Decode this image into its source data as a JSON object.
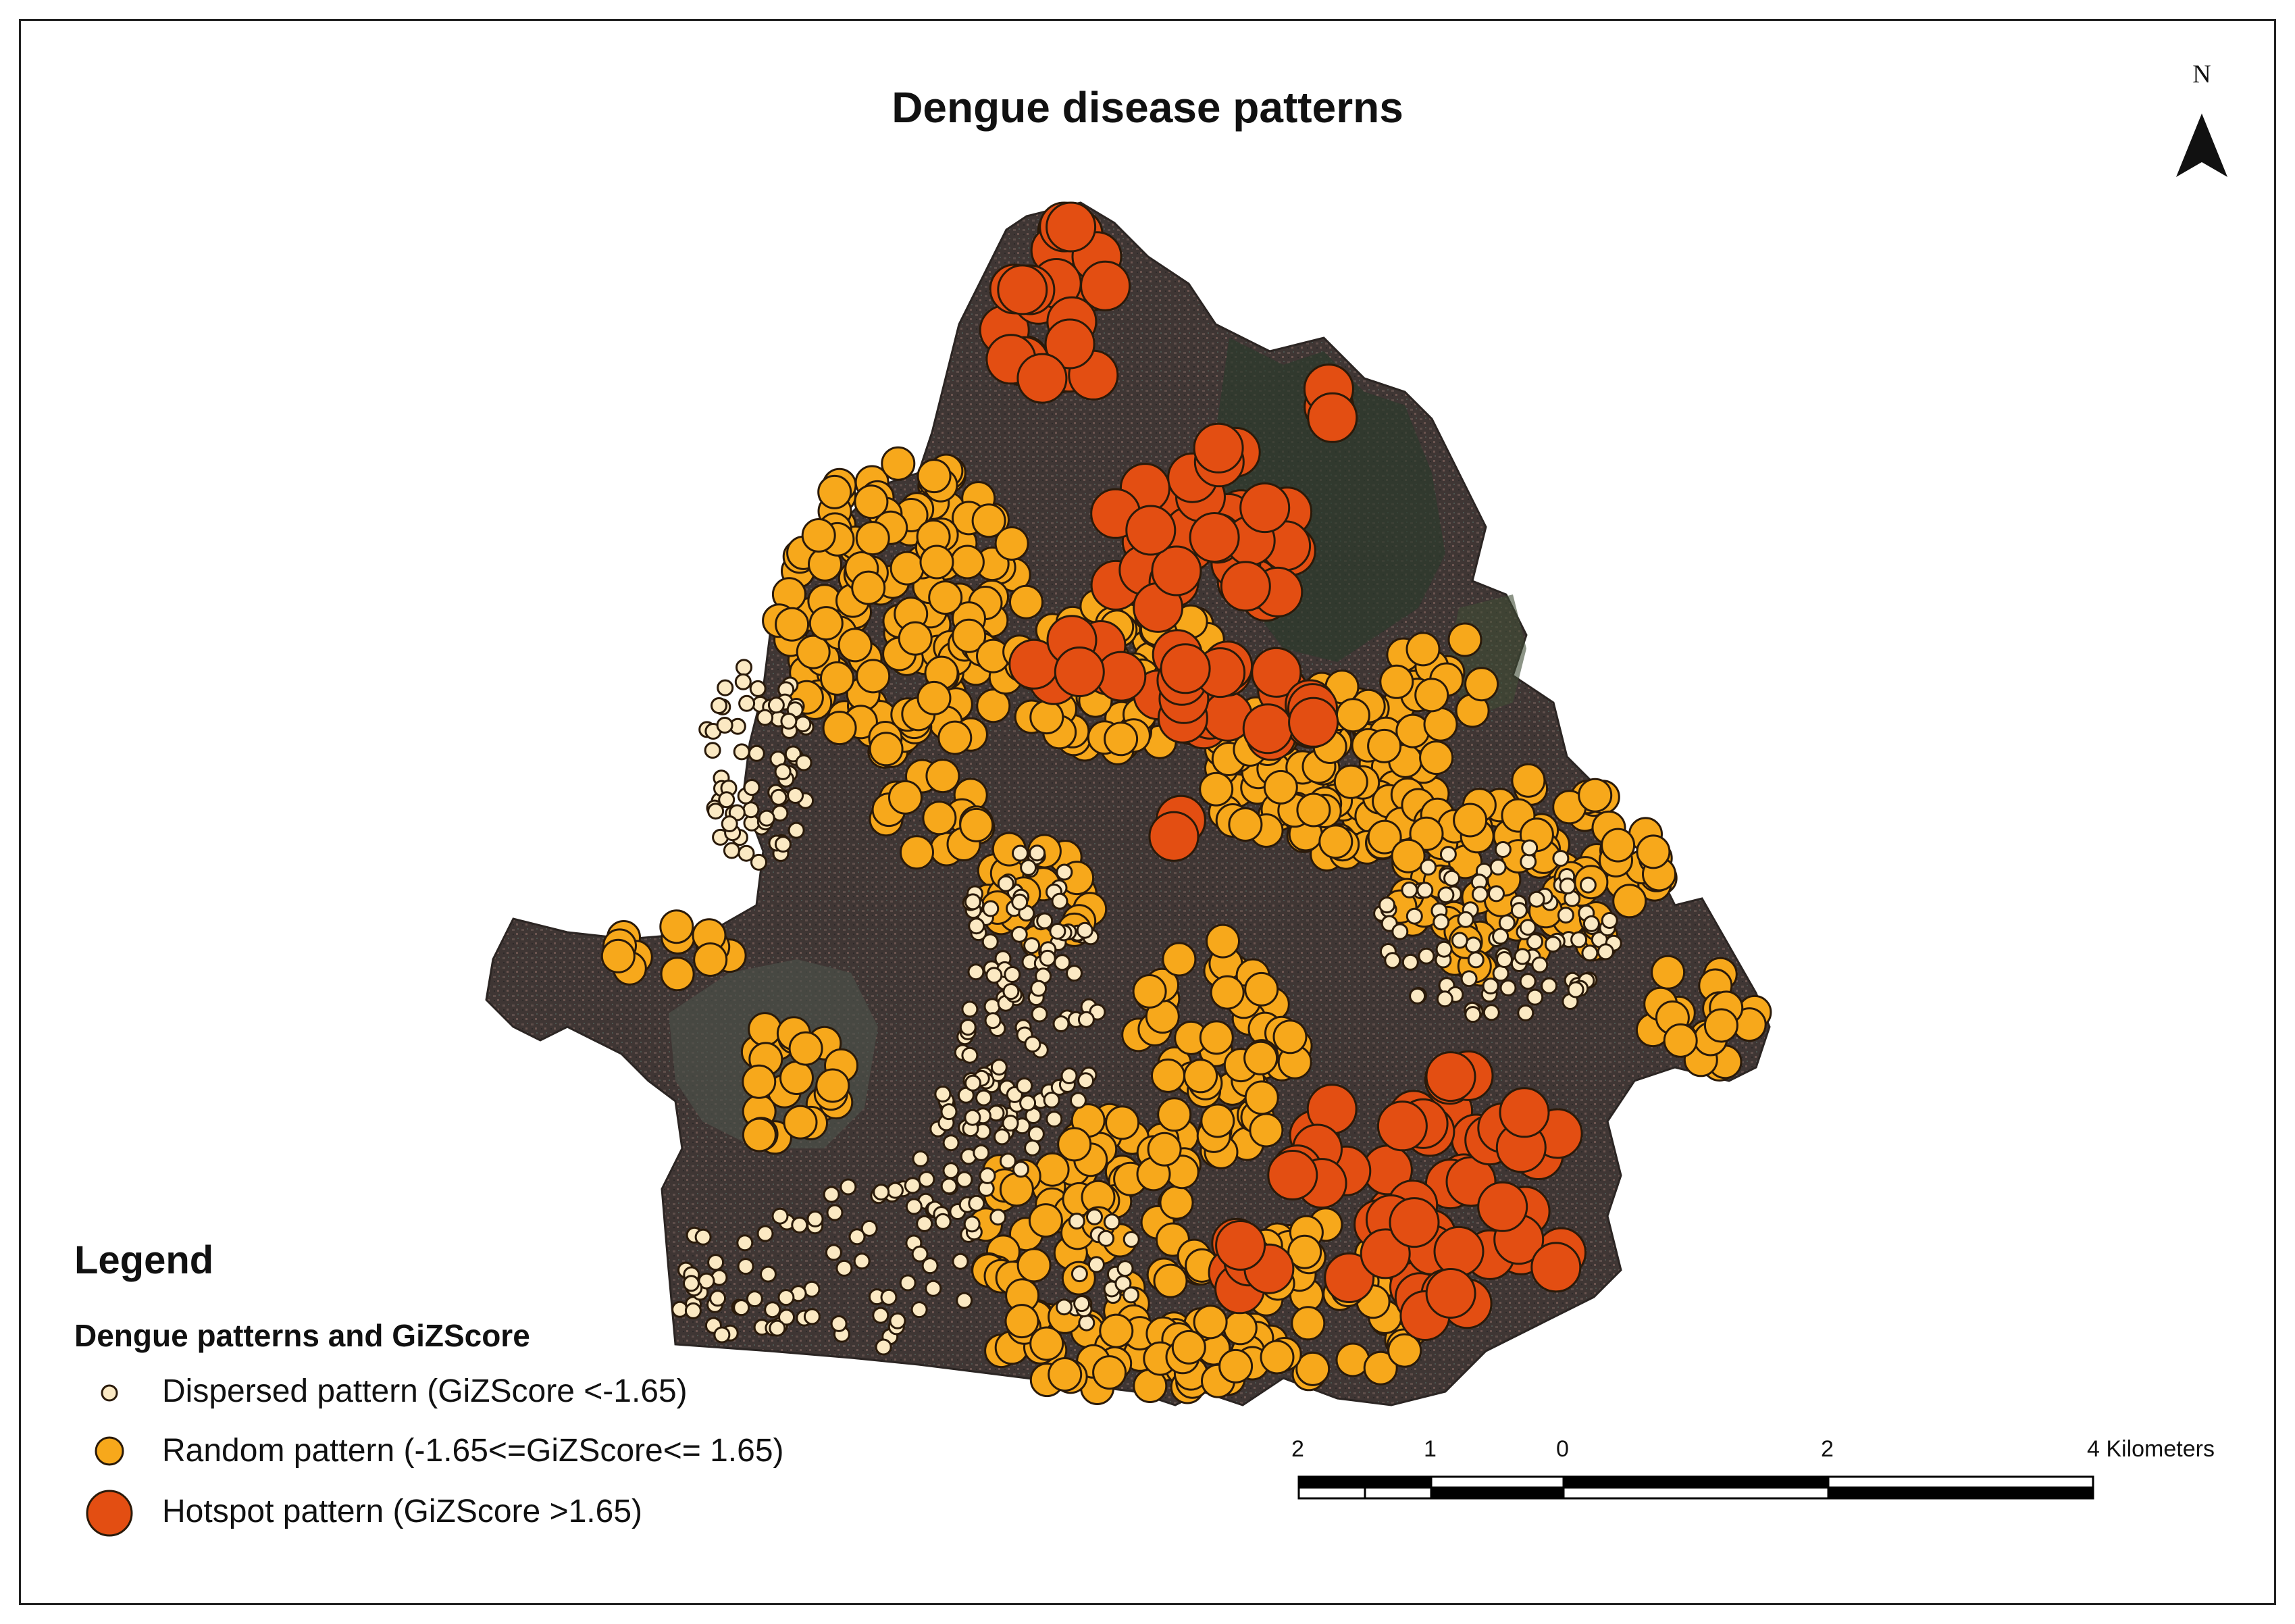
{
  "title": "Dengue disease patterns",
  "north_arrow": {
    "label": "N"
  },
  "legend": {
    "title": "Legend",
    "subtitle": "Dengue patterns and GiZScore",
    "items": [
      {
        "label": "Dispersed pattern (GiZScore <-1.65)",
        "color": "#fbe9c3"
      },
      {
        "label": "Random pattern (-1.65<=GiZScore<= 1.65)",
        "color": "#f7a81b"
      },
      {
        "label": "Hotspot pattern (GiZScore >1.65)",
        "color": "#e34e12"
      }
    ]
  },
  "scale_bar": {
    "labels": [
      "2",
      "1",
      "0",
      "2",
      "4 Kilometers"
    ]
  },
  "colors": {
    "dispersed": "#fbe9c3",
    "random": "#f7a81b",
    "hotspot": "#e34e12",
    "outline": "#2a1a0a",
    "imagery": "#3d3533"
  }
}
